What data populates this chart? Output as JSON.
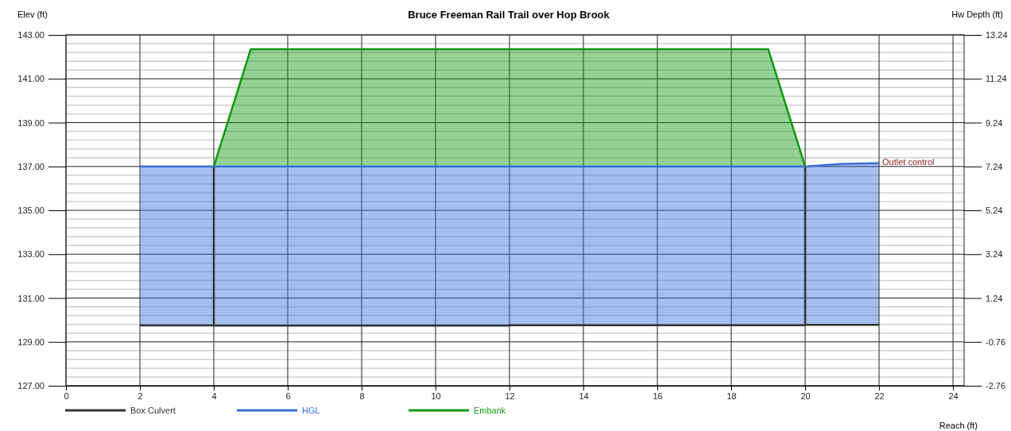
{
  "chart_data": {
    "type": "line",
    "title": "Bruce Freeman Rail Trail over Hop Brook",
    "xlabel": "Reach (ft)",
    "ylabel": "Elev (ft)",
    "y2label": "Hw Depth (ft)",
    "xlim": [
      0,
      24.3
    ],
    "xticks": [
      0,
      2,
      4,
      6,
      8,
      10,
      12,
      14,
      16,
      18,
      20,
      22,
      24
    ],
    "ylim": [
      127,
      143
    ],
    "yticks": [
      {
        "value": 127,
        "label": "127.00"
      },
      {
        "value": 127.4,
        "label": null
      },
      {
        "value": 127.8,
        "label": null
      },
      {
        "value": 128.2,
        "label": null
      },
      {
        "value": 128.6,
        "label": null
      },
      {
        "value": 129,
        "label": "129.00"
      },
      {
        "value": 129.4,
        "label": null
      },
      {
        "value": 129.8,
        "label": null
      },
      {
        "value": 130.2,
        "label": null
      },
      {
        "value": 130.6,
        "label": null
      },
      {
        "value": 131,
        "label": "131.00"
      },
      {
        "value": 131.4,
        "label": null
      },
      {
        "value": 131.8,
        "label": null
      },
      {
        "value": 132.2,
        "label": null
      },
      {
        "value": 132.6,
        "label": null
      },
      {
        "value": 133,
        "label": "133.00"
      },
      {
        "value": 133.4,
        "label": null
      },
      {
        "value": 133.8,
        "label": null
      },
      {
        "value": 134.2,
        "label": null
      },
      {
        "value": 134.6,
        "label": null
      },
      {
        "value": 135,
        "label": "135.00"
      },
      {
        "value": 135.4,
        "label": null
      },
      {
        "value": 135.8,
        "label": null
      },
      {
        "value": 136.2,
        "label": null
      },
      {
        "value": 136.6,
        "label": null
      },
      {
        "value": 137,
        "label": "137.00"
      },
      {
        "value": 137.4,
        "label": null
      },
      {
        "value": 137.8,
        "label": null
      },
      {
        "value": 138.2,
        "label": null
      },
      {
        "value": 138.6,
        "label": null
      },
      {
        "value": 139,
        "label": "139.00"
      },
      {
        "value": 139.4,
        "label": null
      },
      {
        "value": 139.8,
        "label": null
      },
      {
        "value": 140.2,
        "label": null
      },
      {
        "value": 140.6,
        "label": null
      },
      {
        "value": 141,
        "label": "141.00"
      },
      {
        "value": 141.4,
        "label": null
      },
      {
        "value": 141.8,
        "label": null
      },
      {
        "value": 142.2,
        "label": null
      },
      {
        "value": 142.6,
        "label": null
      },
      {
        "value": 143,
        "label": "143.00"
      }
    ],
    "y2lim": [
      -2.76,
      13.24
    ],
    "y2ticks": [
      -2.76,
      -0.76,
      1.24,
      3.24,
      5.24,
      7.24,
      9.24,
      11.24,
      13.24
    ],
    "grid": true,
    "legend": "bottom",
    "marker": "none",
    "line_style": "solid",
    "series": [
      {
        "name": "Box Culvert",
        "color": "#333333",
        "x": [
          2,
          4,
          4,
          4,
          12,
          12,
          20,
          20,
          20,
          22
        ],
        "values": [
          129.75,
          129.75,
          137,
          129.74,
          129.74,
          129.76,
          129.76,
          137,
          129.78,
          129.78
        ]
      },
      {
        "name": "HGL",
        "color": "#3a6fd8",
        "x": [
          2,
          4,
          12,
          12,
          20,
          21,
          22
        ],
        "values": [
          137,
          137,
          137,
          137,
          137,
          137.12,
          137.15
        ],
        "lower": [
          129.75,
          129.74,
          129.74,
          129.76,
          129.76,
          129.78,
          129.78
        ],
        "upper": [
          137,
          137,
          137,
          137,
          137,
          137.12,
          137.15
        ]
      },
      {
        "name": "Embank",
        "color": "#119911",
        "x": [
          4,
          5,
          19,
          20
        ],
        "values": [
          137,
          142.35,
          142.35,
          137
        ],
        "lower": [
          137,
          137,
          137,
          137
        ],
        "upper": [
          137,
          142.35,
          142.35,
          137
        ]
      }
    ],
    "annotations": [
      {
        "text": "Outlet control",
        "x": 22,
        "y": 137.15
      }
    ]
  }
}
